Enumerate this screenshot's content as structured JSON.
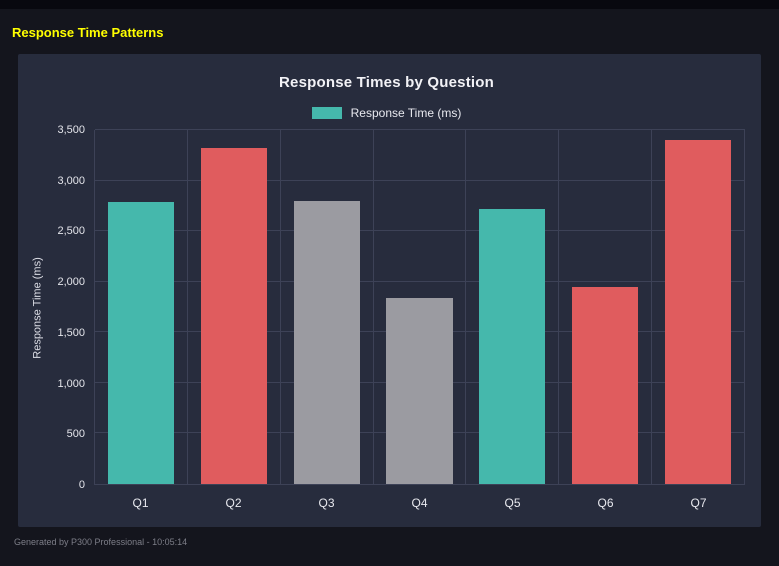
{
  "header": {
    "title": "Response Time Patterns"
  },
  "footer": {
    "text": "Generated by P300 Professional - 10:05:14"
  },
  "chart_data": {
    "type": "bar",
    "title": "Response Times by Question",
    "legend": {
      "label": "Response Time (ms)",
      "color": "#45b8ac",
      "position": "top"
    },
    "xlabel": "",
    "ylabel": "Response Time (ms)",
    "categories": [
      "Q1",
      "Q2",
      "Q3",
      "Q4",
      "Q5",
      "Q6",
      "Q7"
    ],
    "values": [
      2790,
      3320,
      2800,
      1840,
      2720,
      1950,
      3400
    ],
    "bar_colors": [
      "#45b8ac",
      "#e05c5e",
      "#9b9ba1",
      "#9b9ba1",
      "#45b8ac",
      "#e05c5e",
      "#e05c5e"
    ],
    "ylim": [
      0,
      3500
    ],
    "ytick_step": 500,
    "ytick_labels": [
      "0",
      "500",
      "1,000",
      "1,500",
      "2,000",
      "2,500",
      "3,000",
      "3,500"
    ],
    "grid": true
  },
  "colors": {
    "page_bg": "#14151d",
    "panel_bg": "#272c3d",
    "grid": "#3d4257",
    "title_yellow": "#ffff00",
    "text": "#eceef2",
    "footer_text": "#7d7e88"
  }
}
